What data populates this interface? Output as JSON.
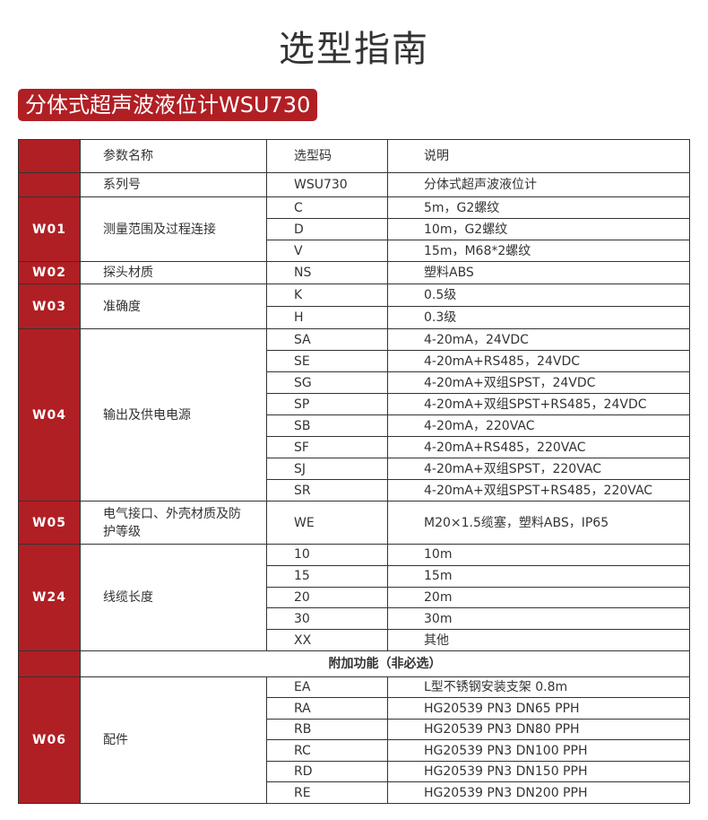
{
  "title": "选型指南",
  "product_badge": "分体式超声波液位计WSU730",
  "accent_color": "#b01f24",
  "header": {
    "param": "参数名称",
    "code": "选型码",
    "desc": "说明"
  },
  "series": {
    "param": "系列号",
    "code": "WSU730",
    "desc": "分体式超声波液位计"
  },
  "groups": [
    {
      "id": "W01",
      "param": "测量范围及过程连接",
      "options": [
        {
          "code": "C",
          "desc": "5m，G2螺纹"
        },
        {
          "code": "D",
          "desc": "10m，G2螺纹"
        },
        {
          "code": "V",
          "desc": "15m，M68*2螺纹"
        }
      ]
    },
    {
      "id": "W02",
      "param": "探头材质",
      "options": [
        {
          "code": "NS",
          "desc": "塑料ABS"
        }
      ]
    },
    {
      "id": "W03",
      "param": "准确度",
      "options": [
        {
          "code": "K",
          "desc": "0.5级"
        },
        {
          "code": "H",
          "desc": "0.3级"
        }
      ]
    },
    {
      "id": "W04",
      "param": "输出及供电电源",
      "options": [
        {
          "code": "SA",
          "desc": "4-20mA，24VDC"
        },
        {
          "code": "SE",
          "desc": "4-20mA+RS485，24VDC"
        },
        {
          "code": "SG",
          "desc": "4-20mA+双组SPST，24VDC"
        },
        {
          "code": "SP",
          "desc": "4-20mA+双组SPST+RS485，24VDC"
        },
        {
          "code": "SB",
          "desc": "4-20mA，220VAC"
        },
        {
          "code": "SF",
          "desc": "4-20mA+RS485，220VAC"
        },
        {
          "code": "SJ",
          "desc": "4-20mA+双组SPST，220VAC"
        },
        {
          "code": "SR",
          "desc": "4-20mA+双组SPST+RS485，220VAC"
        }
      ]
    },
    {
      "id": "W05",
      "param": "电气接口、外壳材质及防护等级",
      "options": [
        {
          "code": "WE",
          "desc": "M20×1.5缆塞，塑料ABS，IP65"
        }
      ]
    },
    {
      "id": "W24",
      "param": "线缆长度",
      "options": [
        {
          "code": "10",
          "desc": "10m"
        },
        {
          "code": "15",
          "desc": "15m"
        },
        {
          "code": "20",
          "desc": "20m"
        },
        {
          "code": "30",
          "desc": "30m"
        },
        {
          "code": "XX",
          "desc": "其他"
        }
      ]
    }
  ],
  "additional_label": "附加功能（非必选）",
  "extra_groups": [
    {
      "id": "W06",
      "param": "配件",
      "options": [
        {
          "code": "EA",
          "desc": "L型不锈钢安装支架 0.8m"
        },
        {
          "code": "RA",
          "desc": "HG20539 PN3 DN65 PPH"
        },
        {
          "code": "RB",
          "desc": "HG20539 PN3 DN80 PPH"
        },
        {
          "code": "RC",
          "desc": "HG20539 PN3 DN100 PPH"
        },
        {
          "code": "RD",
          "desc": "HG20539 PN3 DN150 PPH"
        },
        {
          "code": "RE",
          "desc": "HG20539 PN3 DN200 PPH"
        }
      ]
    }
  ]
}
